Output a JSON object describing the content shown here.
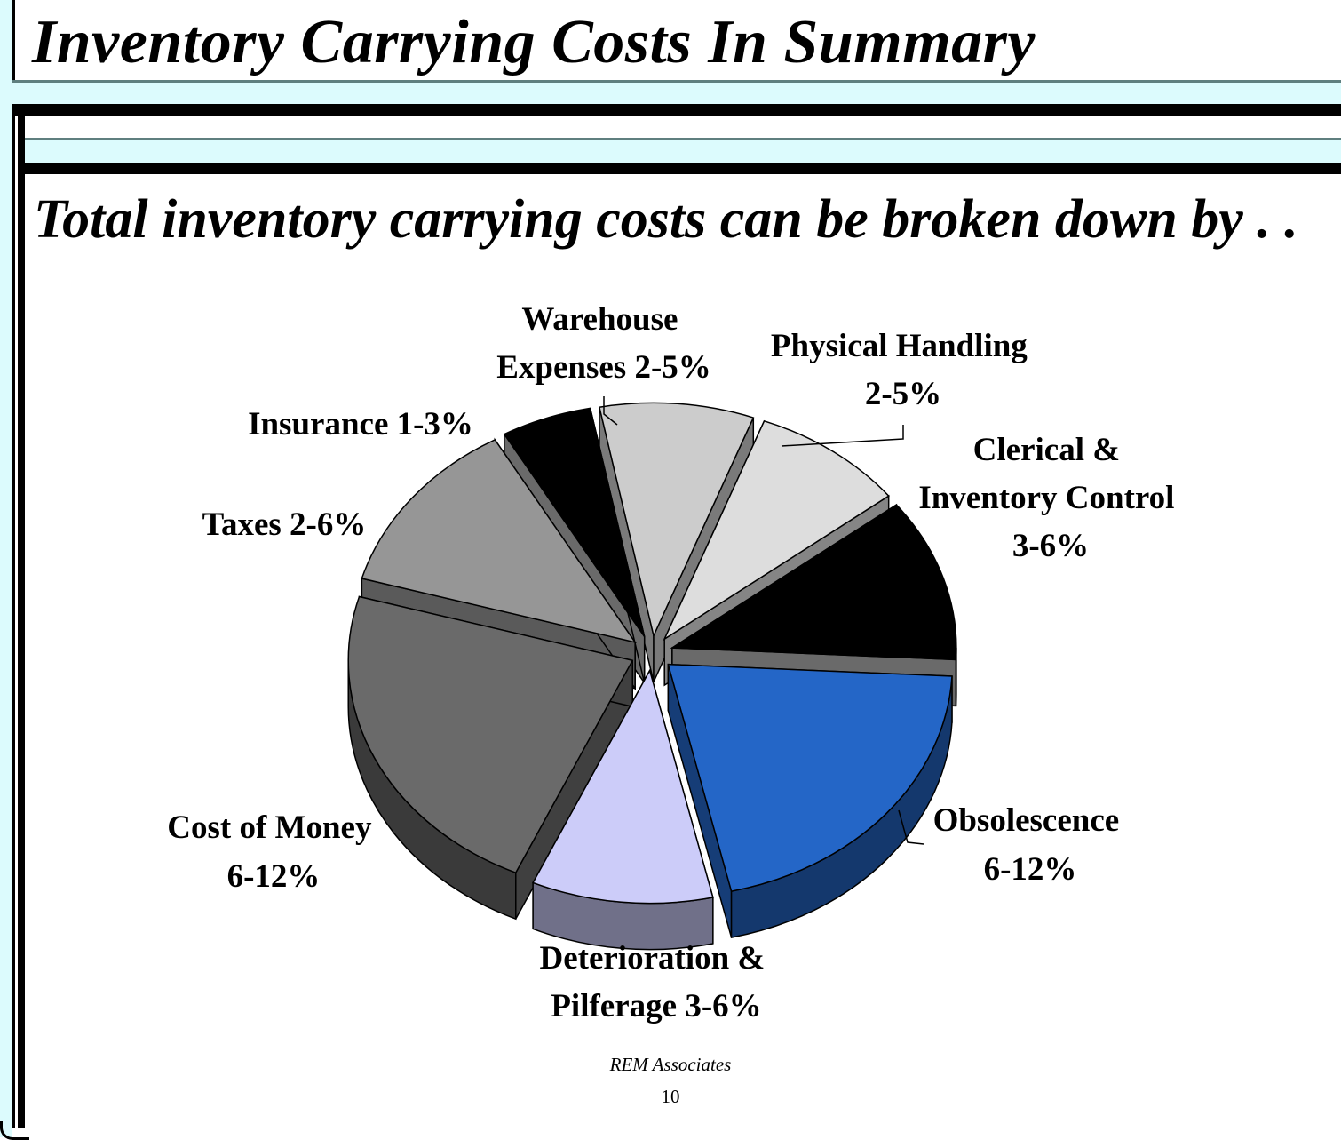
{
  "slide": {
    "title": "Inventory Carrying Costs In Summary",
    "subtitle": "Total inventory carrying costs can be broken down by . .",
    "footer_org": "REM Associates",
    "page_number": "10"
  },
  "chart_data": {
    "type": "pie",
    "exploded": true,
    "three_d": true,
    "title": "",
    "slices": [
      {
        "id": "warehouse",
        "label_lines": [
          "Warehouse",
          "Expenses 2-5%"
        ],
        "value": 8.5,
        "color": "#cccccc"
      },
      {
        "id": "handling",
        "label_lines": [
          "Physical Handling",
          "2-5%"
        ],
        "value": 8.5,
        "color": "#dddddd"
      },
      {
        "id": "clerical",
        "label_lines": [
          "Clerical &",
          "Inventory Control",
          "3-6%"
        ],
        "value": 11,
        "color": "#000000"
      },
      {
        "id": "obsolescence",
        "label_lines": [
          "Obsolescence",
          "6-12%"
        ],
        "value": 20,
        "color": "#2466c7"
      },
      {
        "id": "deterioration",
        "label_lines": [
          "Deterioration &",
          "Pilferage 3-6%"
        ],
        "value": 10,
        "color": "#ccccf9"
      },
      {
        "id": "money",
        "label_lines": [
          "Cost of Money",
          "6-12%"
        ],
        "value": 22,
        "color": "#6a6a6a"
      },
      {
        "id": "taxes",
        "label_lines": [
          "Taxes 2-6%"
        ],
        "value": 12,
        "color": "#969696"
      },
      {
        "id": "insurance",
        "label_lines": [
          "Insurance 1-3%"
        ],
        "value": 5,
        "color": "#000000"
      }
    ]
  }
}
